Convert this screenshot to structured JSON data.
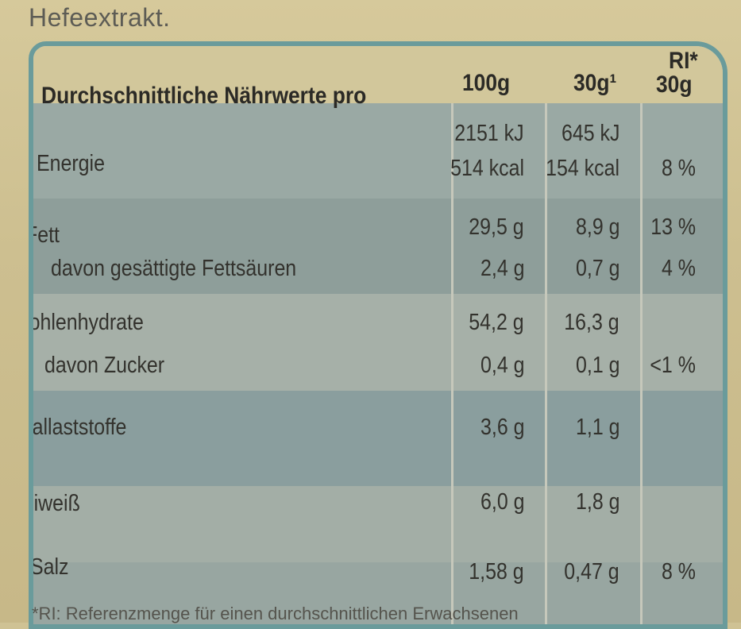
{
  "top_text": "Hefeextrakt.",
  "headers": {
    "label": "Durchschnittliche Nährwerte pro",
    "col100": "100g",
    "col30": "30g¹",
    "ri_line1": "RI*",
    "ri_line2": "30g"
  },
  "rows": [
    {
      "label": "Energie",
      "v100_line1": "2151 kJ",
      "v100_line2": "514 kcal",
      "v30_line1": "645 kJ",
      "v30_line2": "154 kcal",
      "ri": "8 %"
    },
    {
      "label": "Fett",
      "v100": "29,5 g",
      "v30": "8,9 g",
      "ri": "13 %"
    },
    {
      "label": "davon gesättigte Fettsäuren",
      "v100": "2,4 g",
      "v30": "0,7 g",
      "ri": "4 %"
    },
    {
      "label": "Kohlenhydrate",
      "v100": "54,2 g",
      "v30": "16,3 g",
      "ri": ""
    },
    {
      "label": "davon Zucker",
      "v100": "0,4 g",
      "v30": "0,1 g",
      "ri": "<1 %"
    },
    {
      "label": "Ballaststoffe",
      "v100": "3,6 g",
      "v30": "1,1 g",
      "ri": ""
    },
    {
      "label": "Eiweiß",
      "v100": "6,0 g",
      "v30": "1,8 g",
      "ri": ""
    },
    {
      "label": "Salz",
      "v100": "1,58 g",
      "v30": "0,47 g",
      "ri": "8 %"
    }
  ],
  "footer_text": "*RI: Referenzmenge für einen durchschnittlichen Erwachsenen"
}
